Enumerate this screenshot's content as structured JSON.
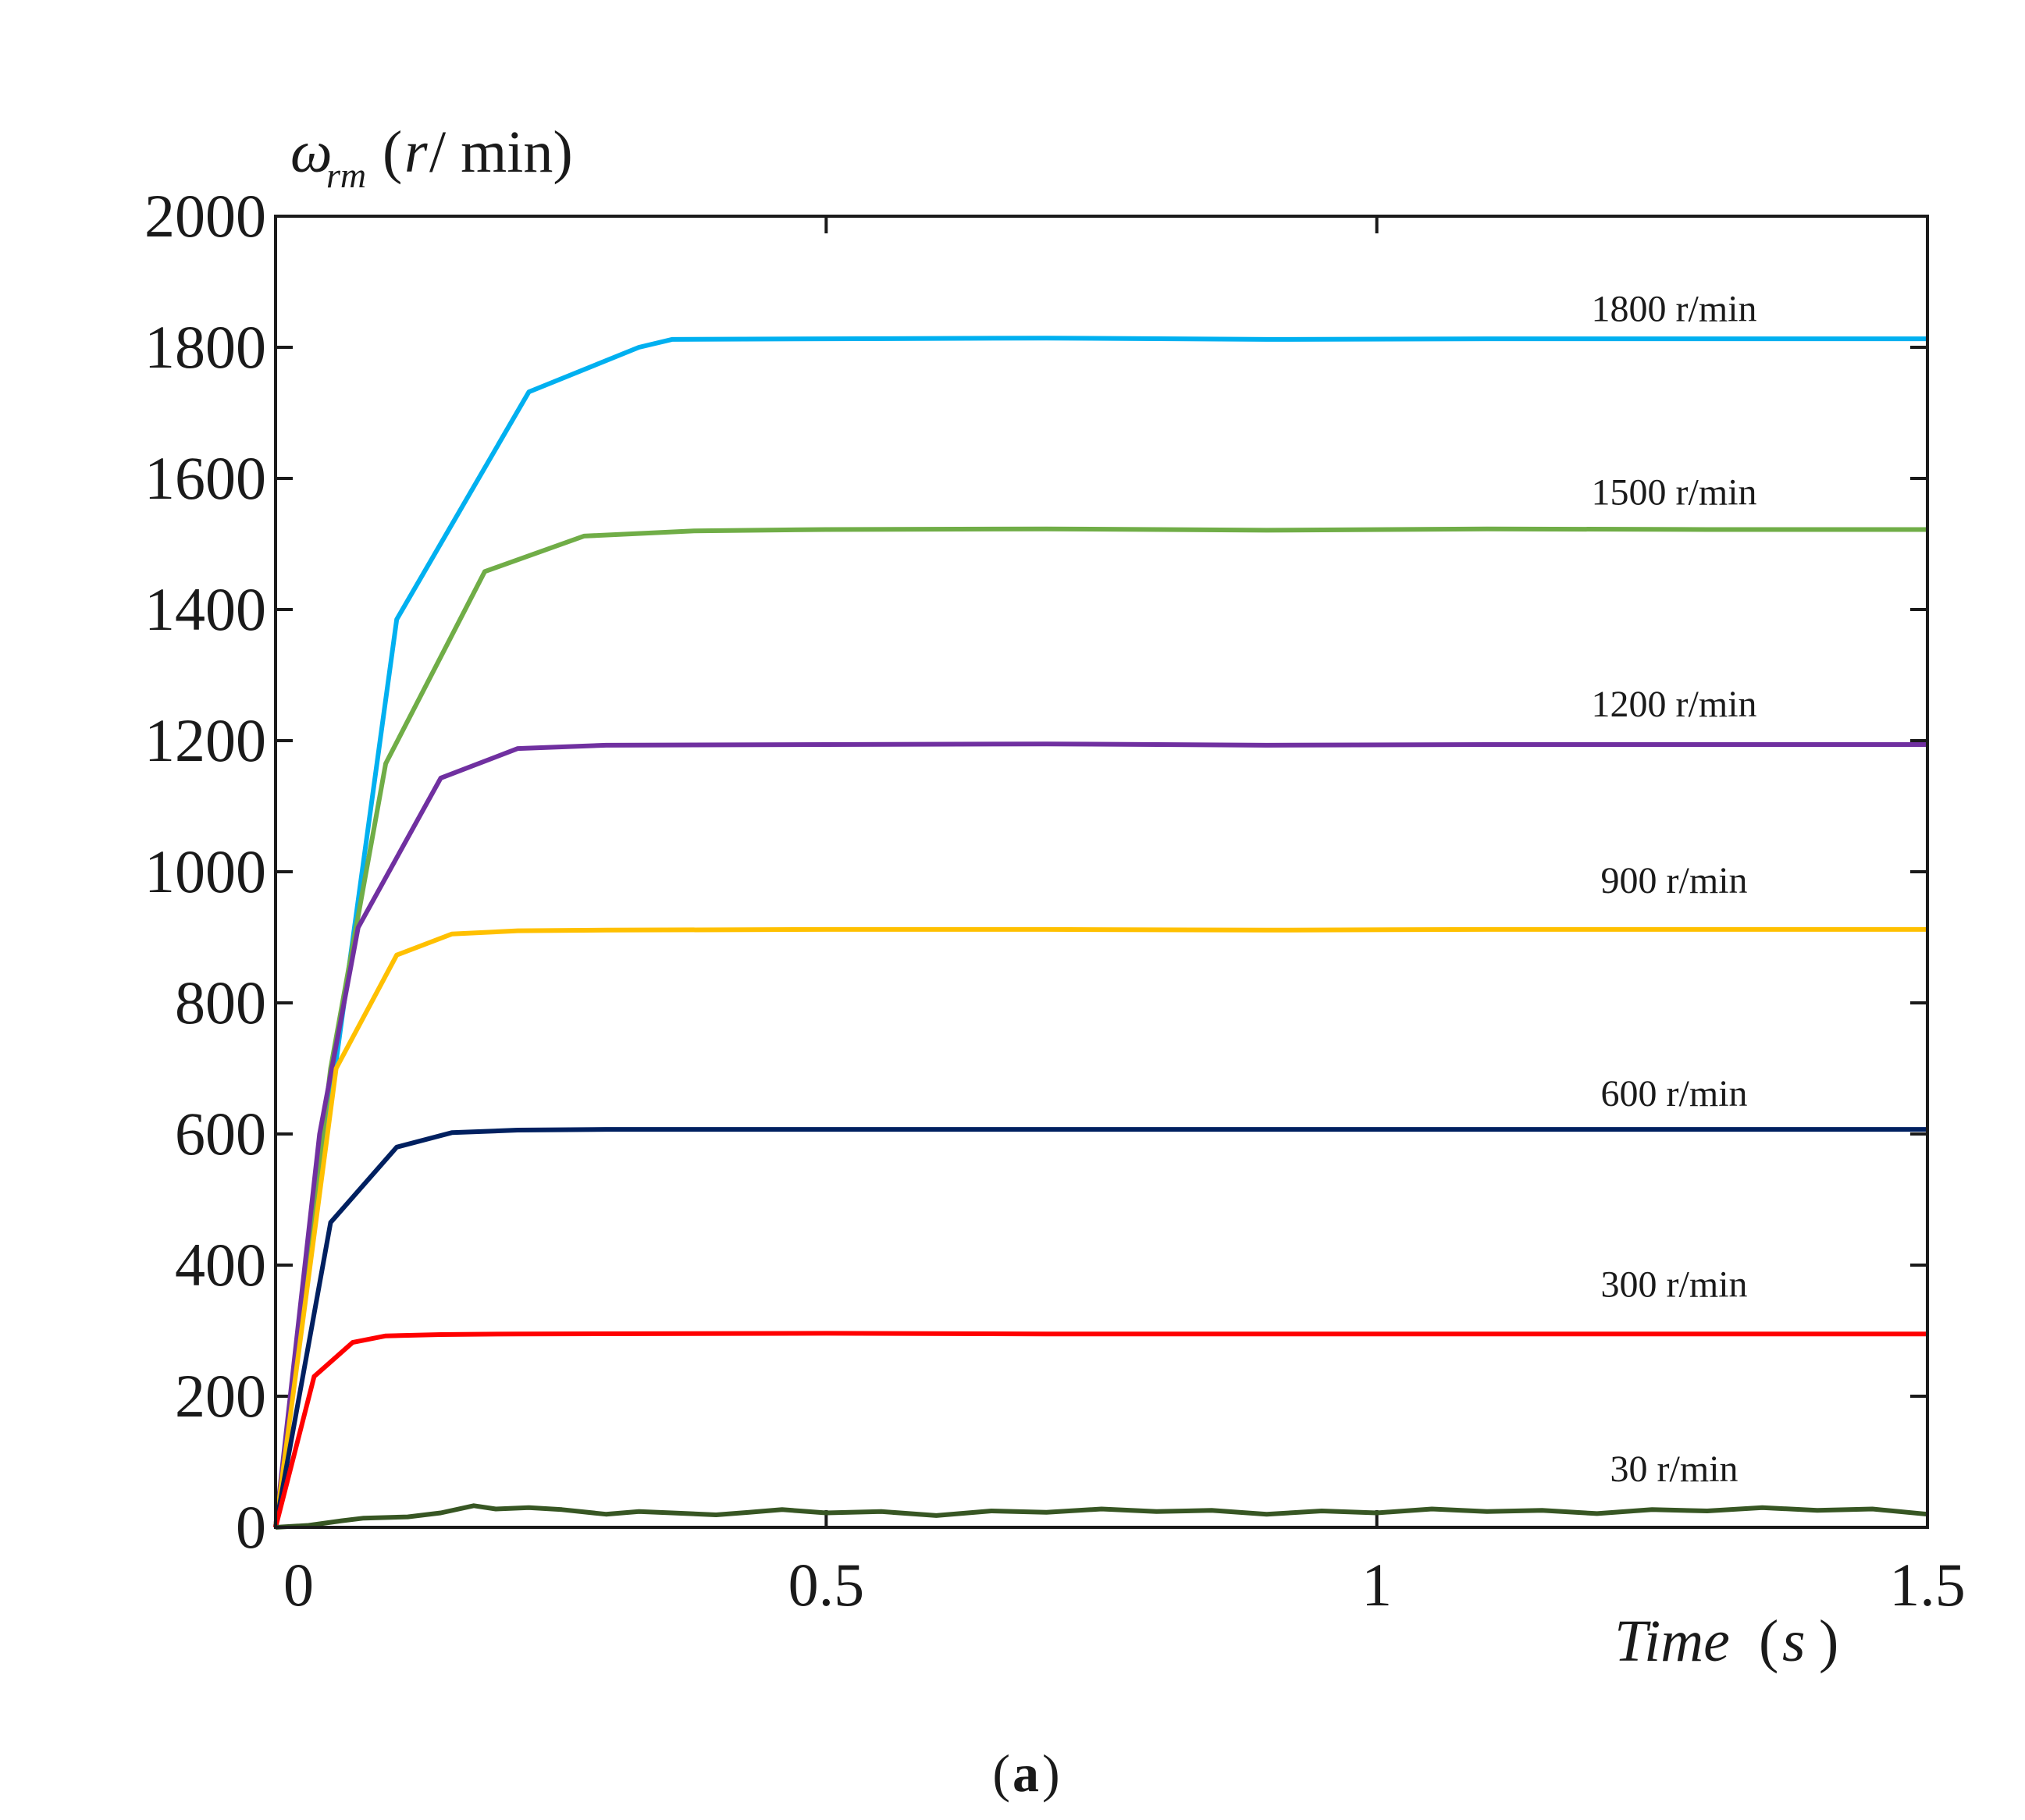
{
  "chart_data": {
    "type": "line",
    "panel_label": "a",
    "ylabel": {
      "symbol": "ω",
      "subscript": "rm",
      "unit_open": "(",
      "unit_var": "r",
      "unit_rest": " / min)"
    },
    "xlabel": {
      "var": "Time",
      "open": "(",
      "unit": "s",
      "close": ")"
    },
    "xlim": [
      0,
      1.5
    ],
    "ylim": [
      0,
      2000
    ],
    "xticks": [
      {
        "value": 0,
        "label": "0"
      },
      {
        "value": 0.5,
        "label": "0.5"
      },
      {
        "value": 1,
        "label": "1"
      },
      {
        "value": 1.5,
        "label": "1.5"
      }
    ],
    "yticks": [
      {
        "value": 0,
        "label": "0"
      },
      {
        "value": 200,
        "label": "200"
      },
      {
        "value": 400,
        "label": "400"
      },
      {
        "value": 600,
        "label": "600"
      },
      {
        "value": 800,
        "label": "800"
      },
      {
        "value": 1000,
        "label": "1000"
      },
      {
        "value": 1200,
        "label": "1200"
      },
      {
        "value": 1400,
        "label": "1400"
      },
      {
        "value": 1600,
        "label": "1600"
      },
      {
        "value": 1800,
        "label": "1800"
      },
      {
        "value": 2000,
        "label": "2000"
      }
    ],
    "grid": false,
    "series": [
      {
        "name": "1800 r/min",
        "color": "#00b0f0",
        "label_anchor": {
          "x": 1.27,
          "y": 1840
        },
        "x": [
          0,
          0.05,
          0.11,
          0.23,
          0.33,
          0.36,
          0.5,
          0.7,
          0.9,
          1.1,
          1.3,
          1.5
        ],
        "y": [
          0,
          650,
          1385,
          1732,
          1800,
          1812,
          1813,
          1814,
          1812,
          1813,
          1813,
          1813
        ]
      },
      {
        "name": "1500 r/min",
        "color": "#70ad47",
        "label_anchor": {
          "x": 1.27,
          "y": 1560
        },
        "x": [
          0,
          0.05,
          0.1,
          0.19,
          0.28,
          0.38,
          0.5,
          0.7,
          0.9,
          1.1,
          1.3,
          1.5
        ],
        "y": [
          0,
          700,
          1165,
          1458,
          1512,
          1520,
          1522,
          1523,
          1521,
          1523,
          1522,
          1522
        ]
      },
      {
        "name": "1200 r/min",
        "color": "#7030a0",
        "label_anchor": {
          "x": 1.27,
          "y": 1237
        },
        "x": [
          0,
          0.04,
          0.075,
          0.15,
          0.22,
          0.3,
          0.5,
          0.7,
          0.9,
          1.1,
          1.3,
          1.5
        ],
        "y": [
          0,
          600,
          915,
          1143,
          1188,
          1193,
          1194,
          1195,
          1193,
          1194,
          1194,
          1194
        ]
      },
      {
        "name": "900 r/min",
        "color": "#ffc000",
        "label_anchor": {
          "x": 1.27,
          "y": 968
        },
        "x": [
          0,
          0.055,
          0.11,
          0.16,
          0.22,
          0.3,
          0.5,
          0.7,
          0.9,
          1.1,
          1.3,
          1.5
        ],
        "y": [
          0,
          700,
          873,
          905,
          910,
          911,
          912,
          912,
          911,
          912,
          912,
          912
        ]
      },
      {
        "name": "600 r/min",
        "color": "#002060",
        "label_anchor": {
          "x": 1.27,
          "y": 643
        },
        "x": [
          0,
          0.05,
          0.11,
          0.16,
          0.22,
          0.3,
          0.5,
          0.7,
          0.9,
          1.1,
          1.3,
          1.5
        ],
        "y": [
          0,
          465,
          580,
          602,
          606,
          607,
          607,
          607,
          607,
          607,
          607,
          607
        ]
      },
      {
        "name": "300 r/min",
        "color": "#ff0000",
        "label_anchor": {
          "x": 1.27,
          "y": 352
        },
        "x": [
          0,
          0.035,
          0.07,
          0.1,
          0.15,
          0.22,
          0.5,
          0.7,
          0.9,
          1.1,
          1.3,
          1.5
        ],
        "y": [
          0,
          230,
          282,
          292,
          294,
          295,
          296,
          295,
          295,
          295,
          295,
          295
        ]
      },
      {
        "name": "30 r/min",
        "color": "#375623",
        "label_anchor": {
          "x": 1.27,
          "y": 70
        },
        "x": [
          0,
          0.03,
          0.06,
          0.08,
          0.12,
          0.15,
          0.18,
          0.2,
          0.23,
          0.26,
          0.3,
          0.33,
          0.36,
          0.4,
          0.43,
          0.46,
          0.5,
          0.55,
          0.6,
          0.65,
          0.7,
          0.75,
          0.8,
          0.85,
          0.9,
          0.95,
          1.0,
          1.05,
          1.1,
          1.15,
          1.2,
          1.25,
          1.3,
          1.35,
          1.4,
          1.45,
          1.5
        ],
        "y": [
          0,
          3,
          10,
          14,
          16,
          22,
          33,
          28,
          30,
          27,
          20,
          24,
          22,
          19,
          23,
          27,
          22,
          24,
          18,
          25,
          23,
          28,
          24,
          26,
          20,
          25,
          22,
          28,
          24,
          26,
          21,
          27,
          25,
          30,
          26,
          28,
          20
        ]
      }
    ]
  }
}
